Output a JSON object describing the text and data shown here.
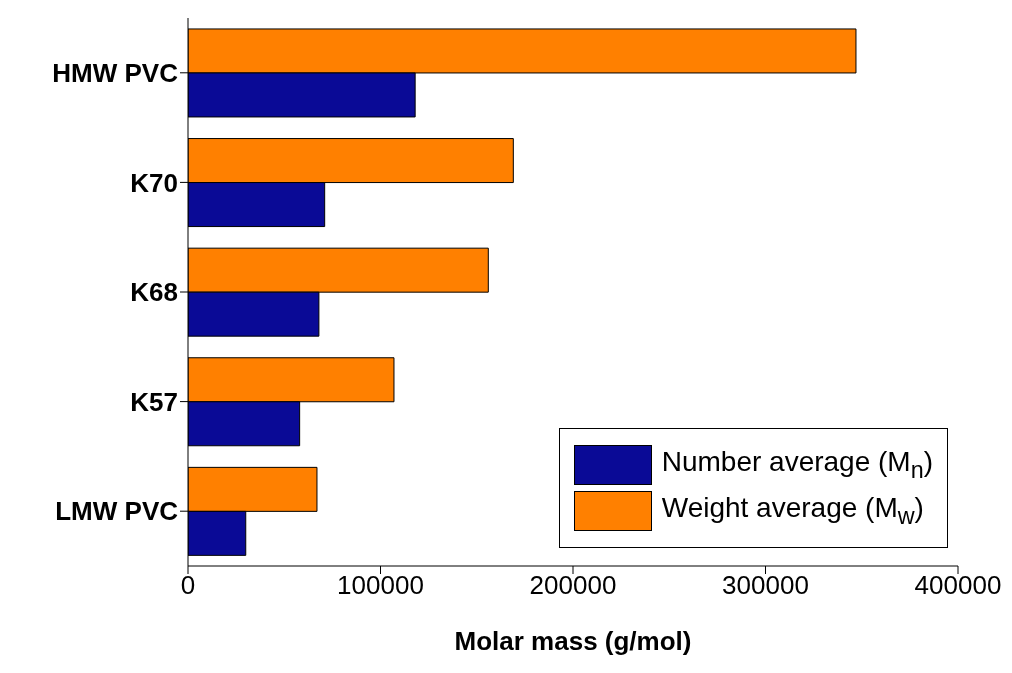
{
  "chart_data": {
    "type": "bar",
    "orientation": "horizontal",
    "xlabel": "Molar mass (g/mol)",
    "categories": [
      "HMW PVC",
      "K70",
      "K68",
      "K57",
      "LMW PVC"
    ],
    "series": [
      {
        "name": "Number average (M$_{n}$)",
        "color": "#0a0a96",
        "values": [
          118000,
          71000,
          68000,
          58000,
          30000
        ]
      },
      {
        "name": "Weight average (M$_{w}$)",
        "color": "#ff8000",
        "values": [
          347000,
          169000,
          156000,
          107000,
          67000
        ]
      }
    ],
    "xlim": [
      0,
      400000
    ],
    "xticks": [
      0,
      100000,
      200000,
      300000,
      400000
    ],
    "grid": false,
    "legend": "bottom right"
  }
}
